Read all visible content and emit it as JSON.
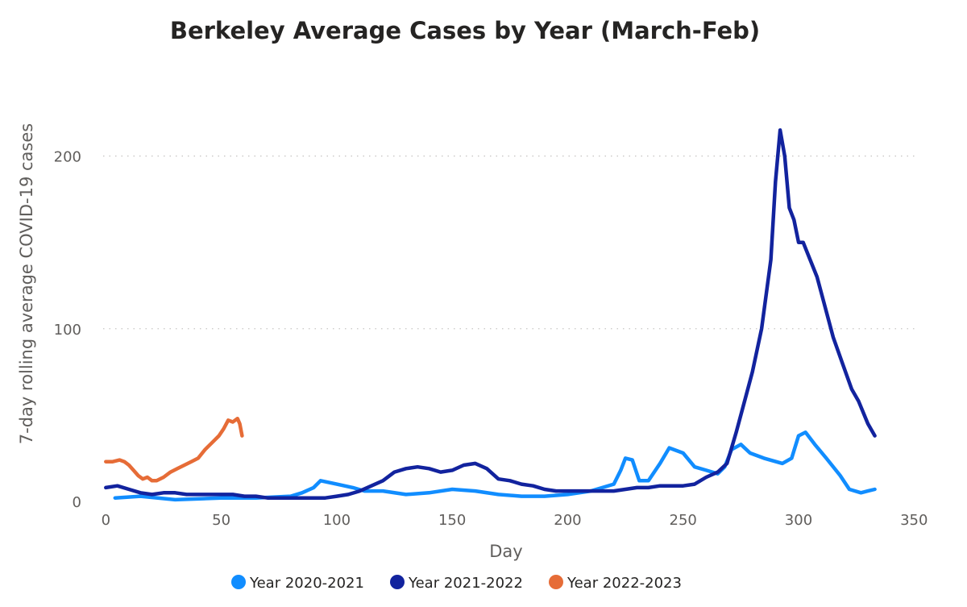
{
  "chart_data": {
    "type": "line",
    "title": "Berkeley Average Cases by Year (March-Feb)",
    "xlabel": "Day",
    "ylabel": "7-day rolling average COVID-19 cases",
    "xlim": [
      -5,
      352
    ],
    "ylim": [
      0,
      225
    ],
    "x_ticks": [
      "0",
      "50",
      "100",
      "150",
      "200",
      "250",
      "300",
      "350"
    ],
    "y_ticks": [
      "0",
      "100",
      "200"
    ],
    "grid": "horizontal dotted",
    "legend_position": "bottom-center",
    "series": [
      {
        "name": "Year 2020-2021",
        "color": "#118DFF",
        "points": [
          [
            4,
            2
          ],
          [
            15,
            3
          ],
          [
            30,
            1
          ],
          [
            50,
            2
          ],
          [
            65,
            2
          ],
          [
            80,
            3
          ],
          [
            85,
            5
          ],
          [
            90,
            8
          ],
          [
            93,
            12
          ],
          [
            100,
            10
          ],
          [
            107,
            8
          ],
          [
            112,
            6
          ],
          [
            120,
            6
          ],
          [
            130,
            4
          ],
          [
            140,
            5
          ],
          [
            150,
            7
          ],
          [
            160,
            6
          ],
          [
            170,
            4
          ],
          [
            180,
            3
          ],
          [
            190,
            3
          ],
          [
            200,
            4
          ],
          [
            210,
            6
          ],
          [
            220,
            10
          ],
          [
            223,
            18
          ],
          [
            225,
            25
          ],
          [
            228,
            24
          ],
          [
            231,
            12
          ],
          [
            235,
            12
          ],
          [
            240,
            22
          ],
          [
            244,
            31
          ],
          [
            250,
            28
          ],
          [
            255,
            20
          ],
          [
            260,
            18
          ],
          [
            265,
            16
          ],
          [
            268,
            20
          ],
          [
            271,
            30
          ],
          [
            275,
            33
          ],
          [
            279,
            28
          ],
          [
            285,
            25
          ],
          [
            293,
            22
          ],
          [
            297,
            25
          ],
          [
            300,
            38
          ],
          [
            303,
            40
          ],
          [
            307,
            33
          ],
          [
            312,
            25
          ],
          [
            318,
            15
          ],
          [
            322,
            7
          ],
          [
            327,
            5
          ],
          [
            330,
            6
          ],
          [
            333,
            7
          ]
        ]
      },
      {
        "name": "Year 2021-2022",
        "color": "#12239E",
        "points": [
          [
            0,
            8
          ],
          [
            5,
            9
          ],
          [
            10,
            7
          ],
          [
            15,
            5
          ],
          [
            20,
            4
          ],
          [
            25,
            5
          ],
          [
            30,
            5
          ],
          [
            35,
            4
          ],
          [
            40,
            4
          ],
          [
            45,
            4
          ],
          [
            50,
            4
          ],
          [
            55,
            4
          ],
          [
            60,
            3
          ],
          [
            65,
            3
          ],
          [
            70,
            2
          ],
          [
            75,
            2
          ],
          [
            80,
            2
          ],
          [
            85,
            2
          ],
          [
            90,
            2
          ],
          [
            95,
            2
          ],
          [
            100,
            3
          ],
          [
            105,
            4
          ],
          [
            110,
            6
          ],
          [
            115,
            9
          ],
          [
            120,
            12
          ],
          [
            125,
            17
          ],
          [
            130,
            19
          ],
          [
            135,
            20
          ],
          [
            140,
            19
          ],
          [
            145,
            17
          ],
          [
            150,
            18
          ],
          [
            155,
            21
          ],
          [
            160,
            22
          ],
          [
            165,
            19
          ],
          [
            170,
            13
          ],
          [
            175,
            12
          ],
          [
            180,
            10
          ],
          [
            185,
            9
          ],
          [
            190,
            7
          ],
          [
            195,
            6
          ],
          [
            200,
            6
          ],
          [
            205,
            6
          ],
          [
            210,
            6
          ],
          [
            215,
            6
          ],
          [
            220,
            6
          ],
          [
            225,
            7
          ],
          [
            230,
            8
          ],
          [
            235,
            8
          ],
          [
            240,
            9
          ],
          [
            245,
            9
          ],
          [
            250,
            9
          ],
          [
            255,
            10
          ],
          [
            260,
            14
          ],
          [
            265,
            17
          ],
          [
            269,
            22
          ],
          [
            273,
            40
          ],
          [
            277,
            60
          ],
          [
            280,
            75
          ],
          [
            284,
            100
          ],
          [
            288,
            140
          ],
          [
            290,
            185
          ],
          [
            292,
            215
          ],
          [
            294,
            200
          ],
          [
            296,
            170
          ],
          [
            298,
            163
          ],
          [
            300,
            150
          ],
          [
            302,
            150
          ],
          [
            305,
            140
          ],
          [
            308,
            130
          ],
          [
            311,
            115
          ],
          [
            315,
            95
          ],
          [
            319,
            80
          ],
          [
            323,
            65
          ],
          [
            326,
            58
          ],
          [
            330,
            45
          ],
          [
            333,
            38
          ]
        ]
      },
      {
        "name": "Year 2022-2023",
        "color": "#E66C37",
        "points": [
          [
            0,
            23
          ],
          [
            3,
            23
          ],
          [
            6,
            24
          ],
          [
            8,
            23
          ],
          [
            10,
            21
          ],
          [
            12,
            18
          ],
          [
            14,
            15
          ],
          [
            16,
            13
          ],
          [
            18,
            14
          ],
          [
            20,
            12
          ],
          [
            22,
            12
          ],
          [
            25,
            14
          ],
          [
            28,
            17
          ],
          [
            31,
            19
          ],
          [
            34,
            21
          ],
          [
            37,
            23
          ],
          [
            40,
            25
          ],
          [
            43,
            30
          ],
          [
            46,
            34
          ],
          [
            49,
            38
          ],
          [
            51,
            42
          ],
          [
            53,
            47
          ],
          [
            55,
            46
          ],
          [
            57,
            48
          ],
          [
            58,
            45
          ],
          [
            59,
            38
          ]
        ]
      }
    ]
  }
}
